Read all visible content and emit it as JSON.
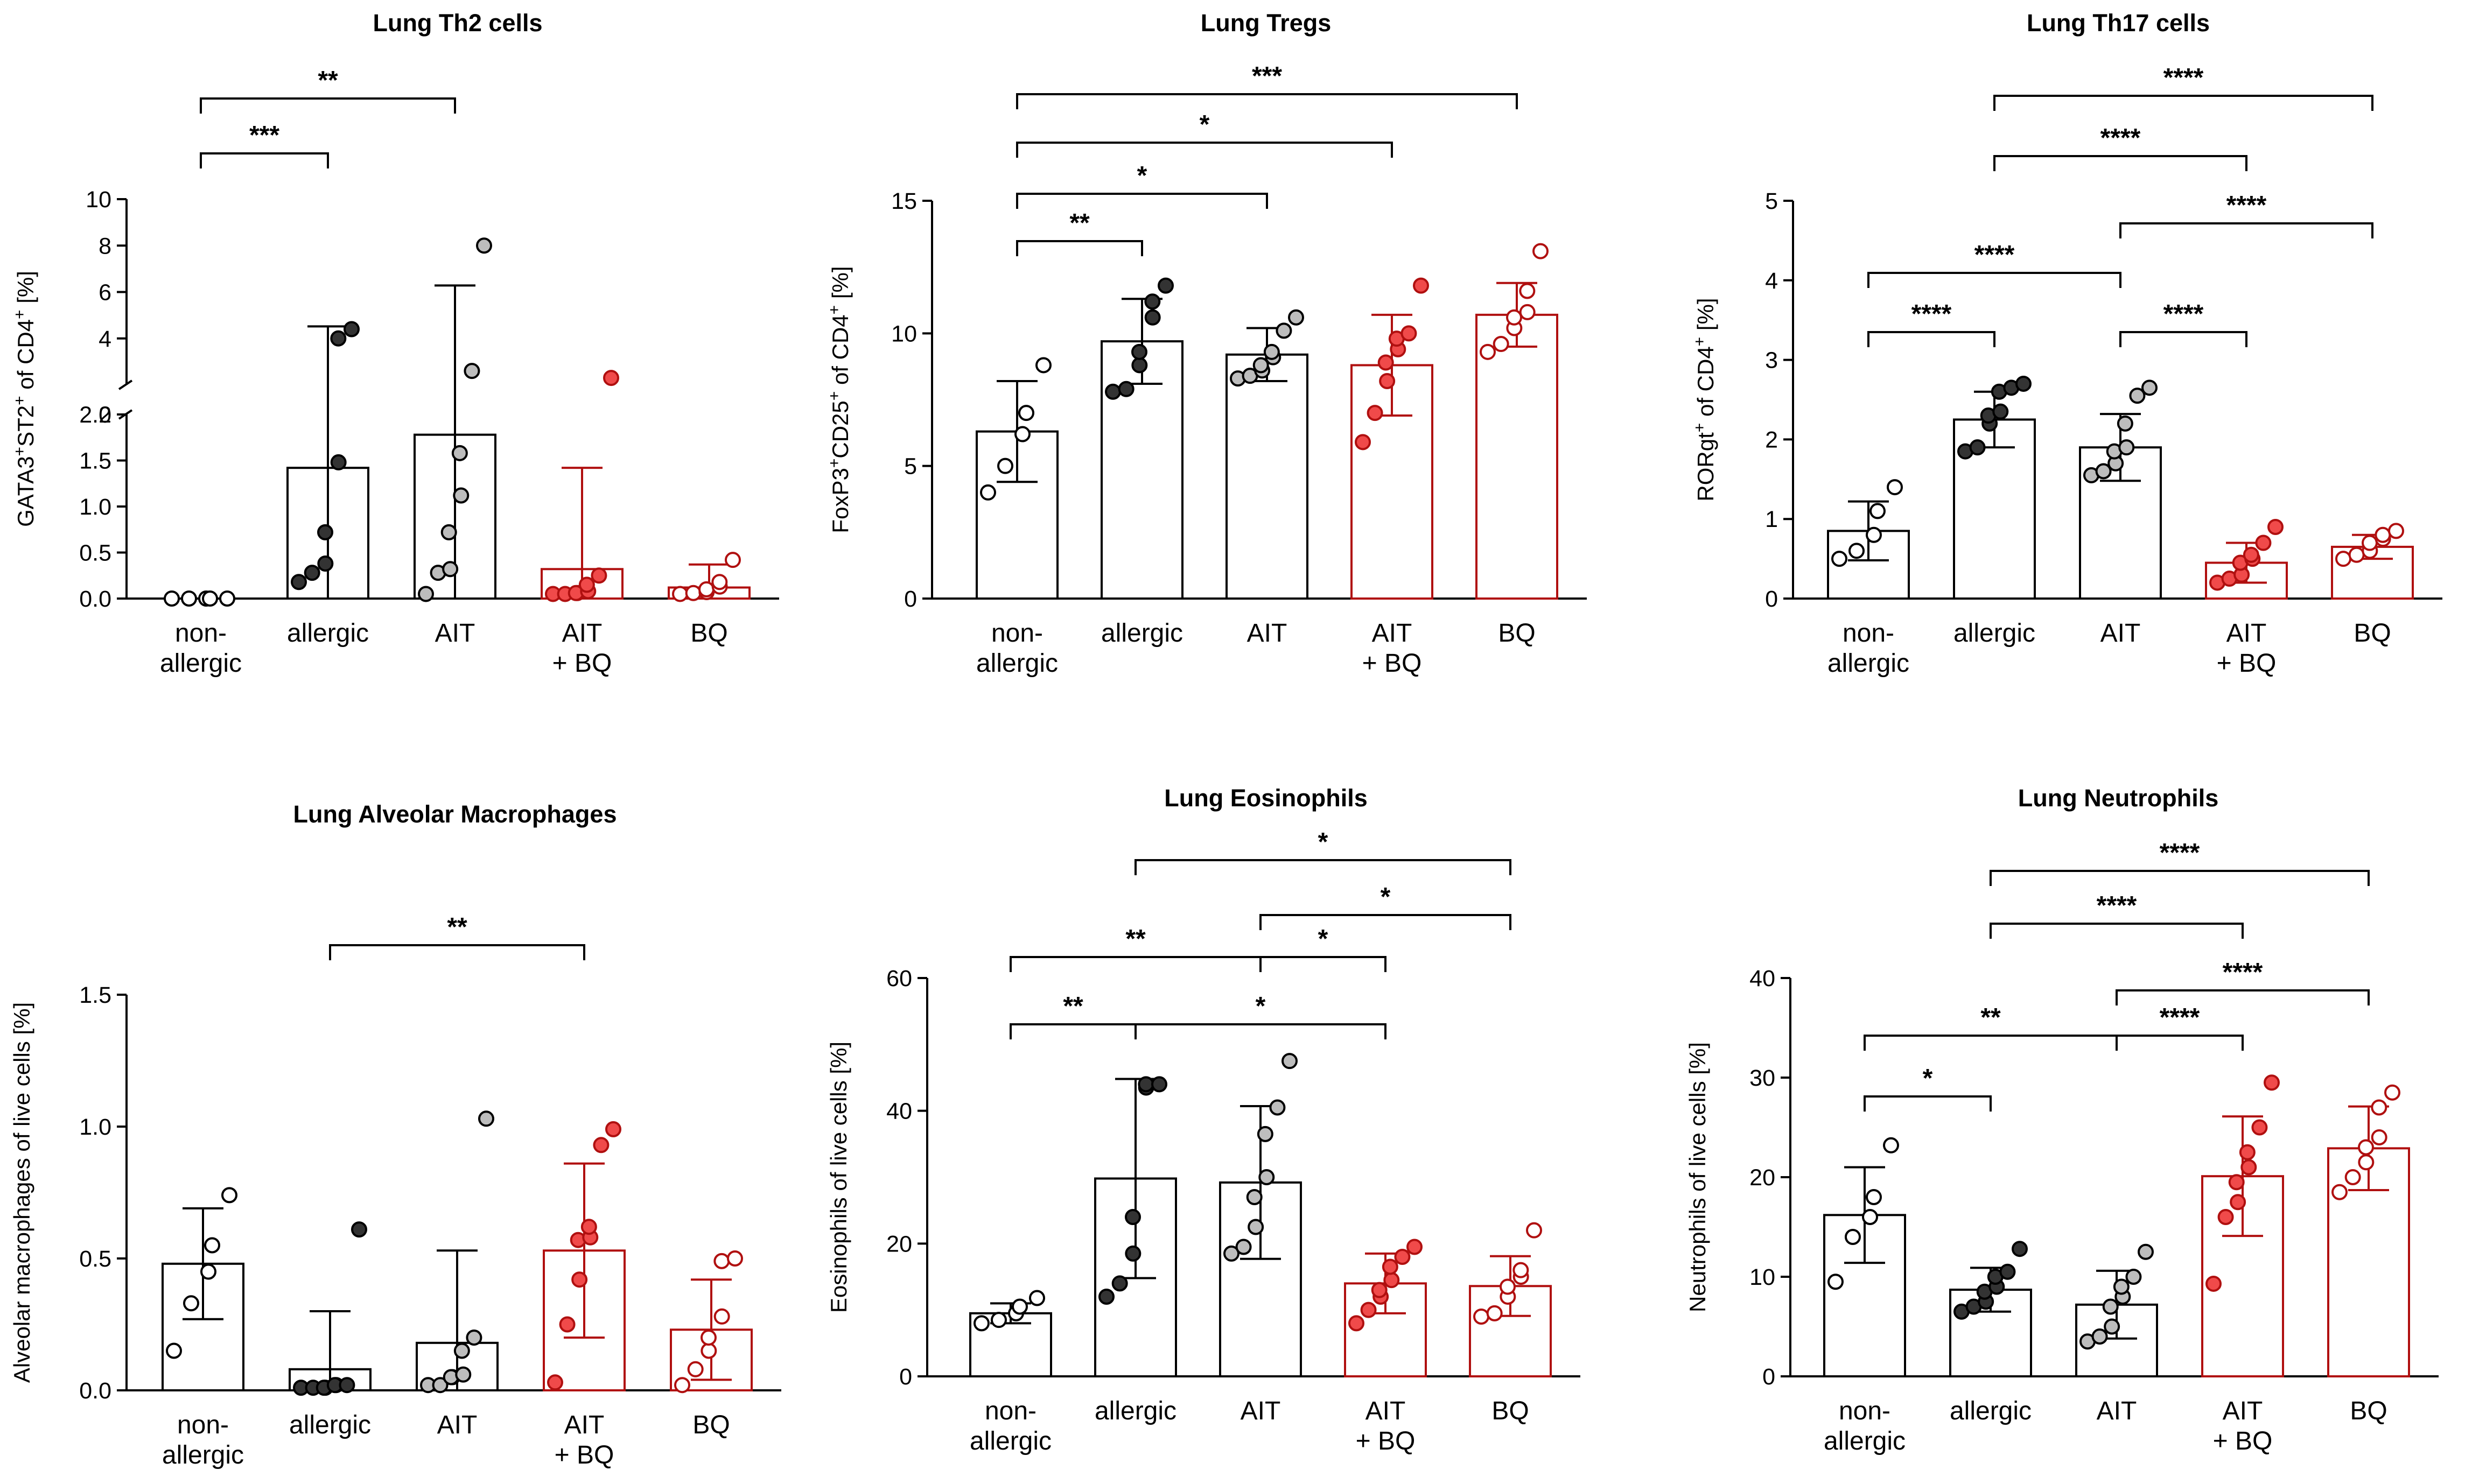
{
  "figure_colors": {
    "black": "#000000",
    "red": "#b01010",
    "dark_fill": "#333333",
    "grey_fill": "#bdbdbd",
    "red_fill": "#f04a4a",
    "white": "#ffffff"
  },
  "chart_data": [
    {
      "type": "bar",
      "title": "Lung Th2 cells",
      "ylabel_main": "GATA3",
      "ylabel_sup1": "+",
      "ylabel_mid": "ST2",
      "ylabel_sup2": "+",
      "ylabel_tail": " of CD4",
      "ylabel_sup3": "+",
      "ylabel_end": " [%]",
      "categories": [
        [
          "non-",
          "allergic"
        ],
        [
          "allergic"
        ],
        [
          "AIT"
        ],
        [
          "AIT",
          "+ BQ"
        ],
        [
          "BQ"
        ]
      ],
      "broken_axis": true,
      "lower_ylim": [
        0,
        2.0
      ],
      "lower_ticks": [
        "0.0",
        "0.5",
        "1.0",
        "1.5",
        "2.0"
      ],
      "upper_ylim": [
        2,
        10
      ],
      "upper_ticks": [
        "2",
        "4",
        "6",
        "8",
        "10"
      ],
      "values": [
        0.0,
        1.42,
        1.78,
        0.32,
        0.12
      ],
      "sd": [
        0.0,
        3.1,
        4.5,
        1.1,
        0.25
      ],
      "colors": [
        "black",
        "black",
        "black",
        "red",
        "red"
      ],
      "point_fill": [
        "white",
        "dark_fill",
        "grey_fill",
        "red_fill",
        "white"
      ],
      "points": [
        [
          0,
          0,
          0,
          0,
          0
        ],
        [
          0.18,
          0.28,
          0.38,
          0.72,
          1.48,
          4.0,
          4.4
        ],
        [
          0.05,
          0.28,
          0.32,
          0.72,
          1.12,
          1.58,
          2.6,
          8.0
        ],
        [
          0.05,
          0.05,
          0.06,
          0.06,
          0.08,
          0.15,
          0.25,
          2.3
        ],
        [
          0.05,
          0.06,
          0.07,
          0.1,
          0.13,
          0.18,
          0.42
        ]
      ],
      "significance": [
        {
          "from": 0,
          "to": 1,
          "label": "***"
        },
        {
          "from": 0,
          "to": 2,
          "label": "**"
        }
      ]
    },
    {
      "type": "bar",
      "title": "Lung Tregs",
      "ylabel_main": "FoxP3",
      "ylabel_sup1": "+",
      "ylabel_mid": "CD25",
      "ylabel_sup2": "+",
      "ylabel_tail": " of CD4",
      "ylabel_sup3": "+",
      "ylabel_end": " [%]",
      "categories": [
        [
          "non-",
          "allergic"
        ],
        [
          "allergic"
        ],
        [
          "AIT"
        ],
        [
          "AIT",
          "+ BQ"
        ],
        [
          "BQ"
        ]
      ],
      "ylim": [
        0,
        15
      ],
      "ticks": [
        "0",
        "5",
        "10",
        "15"
      ],
      "values": [
        6.3,
        9.7,
        9.2,
        8.8,
        10.7
      ],
      "sd": [
        1.9,
        1.6,
        1.0,
        1.9,
        1.2
      ],
      "colors": [
        "black",
        "black",
        "black",
        "red",
        "red"
      ],
      "point_fill": [
        "white",
        "dark_fill",
        "grey_fill",
        "red_fill",
        "white"
      ],
      "points": [
        [
          4.0,
          5.0,
          6.2,
          7.0,
          8.8
        ],
        [
          7.8,
          7.9,
          8.8,
          9.3,
          10.6,
          11.2,
          11.8
        ],
        [
          8.3,
          8.4,
          8.6,
          8.8,
          9.1,
          9.3,
          10.1,
          10.6
        ],
        [
          5.9,
          7.0,
          8.2,
          8.9,
          9.4,
          9.8,
          10.0,
          11.8
        ],
        [
          9.3,
          9.6,
          10.2,
          10.6,
          10.8,
          11.6,
          13.1
        ]
      ],
      "significance": [
        {
          "from": 0,
          "to": 1,
          "label": "**"
        },
        {
          "from": 0,
          "to": 2,
          "label": "*"
        },
        {
          "from": 0,
          "to": 3,
          "label": "*"
        },
        {
          "from": 0,
          "to": 4,
          "label": "***"
        }
      ]
    },
    {
      "type": "bar",
      "title": "Lung Th17 cells",
      "ylabel_main": "RORgt",
      "ylabel_sup1": "+",
      "ylabel_mid": "",
      "ylabel_sup2": "",
      "ylabel_tail": " of CD4",
      "ylabel_sup3": "+",
      "ylabel_end": " [%]",
      "categories": [
        [
          "non-",
          "allergic"
        ],
        [
          "allergic"
        ],
        [
          "AIT"
        ],
        [
          "AIT",
          "+ BQ"
        ],
        [
          "BQ"
        ]
      ],
      "ylim": [
        0,
        5
      ],
      "ticks": [
        "0",
        "1",
        "2",
        "3",
        "4",
        "5"
      ],
      "values": [
        0.85,
        2.25,
        1.9,
        0.45,
        0.65
      ],
      "sd": [
        0.37,
        0.35,
        0.42,
        0.25,
        0.15
      ],
      "colors": [
        "black",
        "black",
        "black",
        "red",
        "red"
      ],
      "point_fill": [
        "white",
        "dark_fill",
        "grey_fill",
        "red_fill",
        "white"
      ],
      "points": [
        [
          0.5,
          0.6,
          0.8,
          1.1,
          1.4
        ],
        [
          1.85,
          1.9,
          2.2,
          2.3,
          2.35,
          2.6,
          2.65,
          2.7
        ],
        [
          1.55,
          1.6,
          1.7,
          1.85,
          1.9,
          2.2,
          2.55,
          2.65
        ],
        [
          0.2,
          0.25,
          0.3,
          0.45,
          0.5,
          0.55,
          0.7,
          0.9
        ],
        [
          0.5,
          0.55,
          0.6,
          0.7,
          0.75,
          0.8,
          0.85
        ]
      ],
      "significance": [
        {
          "from": 0,
          "to": 1,
          "label": "****"
        },
        {
          "from": 0,
          "to": 2,
          "label": "****"
        },
        {
          "from": 2,
          "to": 3,
          "label": "****"
        },
        {
          "from": 2,
          "to": 4,
          "label": "****"
        },
        {
          "from": 1,
          "to": 3,
          "label": "****"
        },
        {
          "from": 1,
          "to": 4,
          "label": "****"
        }
      ]
    },
    {
      "type": "bar",
      "title": "Lung Alveolar Macrophages",
      "ylabel_main": "Alveolar macrophages of live cells [%]",
      "categories": [
        [
          "non-",
          "allergic"
        ],
        [
          "allergic"
        ],
        [
          "AIT"
        ],
        [
          "AIT",
          "+ BQ"
        ],
        [
          "BQ"
        ]
      ],
      "ylim": [
        0,
        1.5
      ],
      "ticks": [
        "0.0",
        "0.5",
        "1.0",
        "1.5"
      ],
      "values": [
        0.48,
        0.08,
        0.18,
        0.53,
        0.23
      ],
      "sd": [
        0.21,
        0.22,
        0.35,
        0.33,
        0.19
      ],
      "colors": [
        "black",
        "black",
        "black",
        "red",
        "red"
      ],
      "point_fill": [
        "white",
        "dark_fill",
        "grey_fill",
        "red_fill",
        "white"
      ],
      "points": [
        [
          0.15,
          0.33,
          0.45,
          0.55,
          0.74
        ],
        [
          0.01,
          0.01,
          0.01,
          0.01,
          0.02,
          0.02,
          0.02,
          0.61
        ],
        [
          0.02,
          0.02,
          0.05,
          0.05,
          0.06,
          0.15,
          0.2,
          1.03
        ],
        [
          0.03,
          0.25,
          0.42,
          0.57,
          0.58,
          0.62,
          0.93,
          0.99
        ],
        [
          0.02,
          0.08,
          0.15,
          0.2,
          0.28,
          0.49,
          0.5
        ]
      ],
      "significance": [
        {
          "from": 1,
          "to": 3,
          "label": "**"
        }
      ]
    },
    {
      "type": "bar",
      "title": "Lung Eosinophils",
      "ylabel_main": "Eosinophils of live cells [%]",
      "categories": [
        [
          "non-",
          "allergic"
        ],
        [
          "allergic"
        ],
        [
          "AIT"
        ],
        [
          "AIT",
          "+ BQ"
        ],
        [
          "BQ"
        ]
      ],
      "ylim": [
        0,
        60
      ],
      "ticks": [
        "0",
        "20",
        "40",
        "60"
      ],
      "values": [
        9.5,
        29.8,
        29.2,
        14.0,
        13.6
      ],
      "sd": [
        1.5,
        15.0,
        11.5,
        4.5,
        4.5
      ],
      "colors": [
        "black",
        "black",
        "black",
        "red",
        "red"
      ],
      "point_fill": [
        "white",
        "dark_fill",
        "grey_fill",
        "red_fill",
        "white"
      ],
      "points": [
        [
          8.0,
          8.5,
          9.5,
          10.5,
          11.8
        ],
        [
          12.0,
          14.0,
          18.5,
          24.0,
          43.5,
          44.0,
          44.0
        ],
        [
          18.5,
          19.5,
          22.5,
          27.0,
          30.0,
          36.5,
          40.5,
          47.5
        ],
        [
          8.0,
          10.0,
          12.0,
          13.0,
          14.5,
          16.5,
          18.0,
          19.5
        ],
        [
          9.0,
          9.5,
          12.0,
          13.5,
          15.0,
          16.0,
          22.0
        ]
      ],
      "significance": [
        {
          "from": 0,
          "to": 1,
          "label": "**"
        },
        {
          "from": 0,
          "to": 2,
          "label": "**"
        },
        {
          "from": 1,
          "to": 3,
          "label": "*"
        },
        {
          "from": 2,
          "to": 3,
          "label": "*"
        },
        {
          "from": 2,
          "to": 4,
          "label": "*"
        },
        {
          "from": 1,
          "to": 4,
          "label": "*"
        }
      ]
    },
    {
      "type": "bar",
      "title": "Lung Neutrophils",
      "ylabel_main": "Neutrophils of live cells [%]",
      "categories": [
        [
          "non-",
          "allergic"
        ],
        [
          "allergic"
        ],
        [
          "AIT"
        ],
        [
          "AIT",
          "+ BQ"
        ],
        [
          "BQ"
        ]
      ],
      "ylim": [
        0,
        40
      ],
      "ticks": [
        "0",
        "10",
        "20",
        "30",
        "40"
      ],
      "values": [
        16.2,
        8.7,
        7.2,
        20.1,
        22.9
      ],
      "sd": [
        4.8,
        2.2,
        3.4,
        6.0,
        4.2
      ],
      "colors": [
        "black",
        "black",
        "black",
        "red",
        "red"
      ],
      "point_fill": [
        "white",
        "dark_fill",
        "grey_fill",
        "red_fill",
        "white"
      ],
      "points": [
        [
          9.5,
          14.0,
          16.0,
          18.0,
          23.2
        ],
        [
          6.5,
          7.0,
          7.5,
          8.5,
          9.0,
          10.0,
          10.5,
          12.8
        ],
        [
          3.5,
          4.0,
          5.0,
          7.0,
          8.0,
          9.0,
          10.0,
          12.5
        ],
        [
          9.3,
          16.0,
          17.5,
          19.5,
          21.0,
          22.5,
          25.0,
          29.5
        ],
        [
          18.5,
          20.0,
          21.5,
          23.0,
          24.0,
          27.0,
          28.5
        ]
      ],
      "significance": [
        {
          "from": 0,
          "to": 1,
          "label": "*"
        },
        {
          "from": 0,
          "to": 2,
          "label": "**"
        },
        {
          "from": 2,
          "to": 3,
          "label": "****"
        },
        {
          "from": 2,
          "to": 4,
          "label": "****"
        },
        {
          "from": 1,
          "to": 3,
          "label": "****"
        },
        {
          "from": 1,
          "to": 4,
          "label": "****"
        }
      ]
    }
  ]
}
